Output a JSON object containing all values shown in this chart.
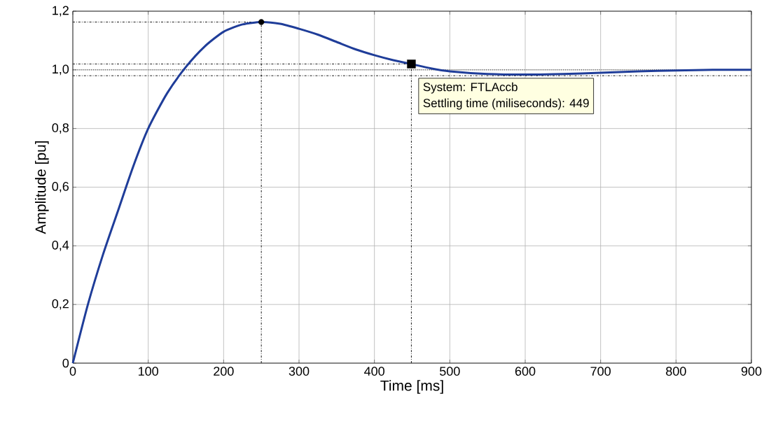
{
  "chart_data": {
    "type": "line",
    "xlabel": "Time [ms]",
    "ylabel": "Amplitude [pu]",
    "xlim": [
      0,
      900
    ],
    "ylim": [
      0,
      1.2
    ],
    "xticks": [
      0,
      100,
      200,
      300,
      400,
      500,
      600,
      700,
      800,
      900
    ],
    "yticks": [
      0,
      {
        "value": 0.2,
        "label": "0,2"
      },
      {
        "value": 0.4,
        "label": "0,4"
      },
      {
        "value": 0.6,
        "label": "0,6"
      },
      {
        "value": 0.8,
        "label": "0,8"
      },
      {
        "value": 1.0,
        "label": "1,0"
      },
      {
        "value": 1.2,
        "label": "1,2"
      }
    ],
    "grid": true,
    "series": [
      {
        "color": "#1f3d99",
        "x": [
          0,
          20,
          40,
          60,
          80,
          100,
          125,
          150,
          175,
          200,
          225,
          250,
          275,
          300,
          325,
          350,
          375,
          400,
          425,
          449,
          475,
          500,
          550,
          600,
          650,
          700,
          750,
          800,
          850,
          900
        ],
        "values": [
          0,
          0.2,
          0.37,
          0.52,
          0.67,
          0.8,
          0.92,
          1.01,
          1.08,
          1.13,
          1.155,
          1.163,
          1.157,
          1.14,
          1.12,
          1.095,
          1.07,
          1.05,
          1.033,
          1.02,
          1.005,
          0.995,
          0.986,
          0.984,
          0.986,
          0.99,
          0.995,
          0.998,
          1.0,
          1.0
        ]
      },
      {
        "type": "scatter",
        "marker": "circle",
        "color": "#000000",
        "x": [
          250
        ],
        "values": [
          1.163
        ]
      },
      {
        "type": "scatter",
        "marker": "square",
        "color": "#000000",
        "x": [
          449
        ],
        "values": [
          1.02
        ]
      }
    ],
    "ref_lines": [
      {
        "axis": "y",
        "value": 1.0,
        "line_style": "dotted",
        "color": "#000000"
      },
      {
        "axis": "y",
        "value": 1.02,
        "line_style": "dashed",
        "color": "#000000"
      },
      {
        "axis": "y",
        "value": 0.98,
        "line_style": "dashed",
        "color": "#000000"
      },
      {
        "axis": "y",
        "value": 1.163,
        "line_style": "dashed",
        "color": "#000000"
      },
      {
        "axis": "x",
        "value": 250,
        "line_style": "dashed",
        "color": "#000000"
      },
      {
        "axis": "x",
        "value": 449,
        "line_style": "dashed",
        "color": "#000000"
      }
    ],
    "annotations": [
      {
        "text": "System: FTLAccb",
        "x": 449,
        "y": 1.02
      },
      "Settling time (miliseconds): 449"
    ]
  }
}
